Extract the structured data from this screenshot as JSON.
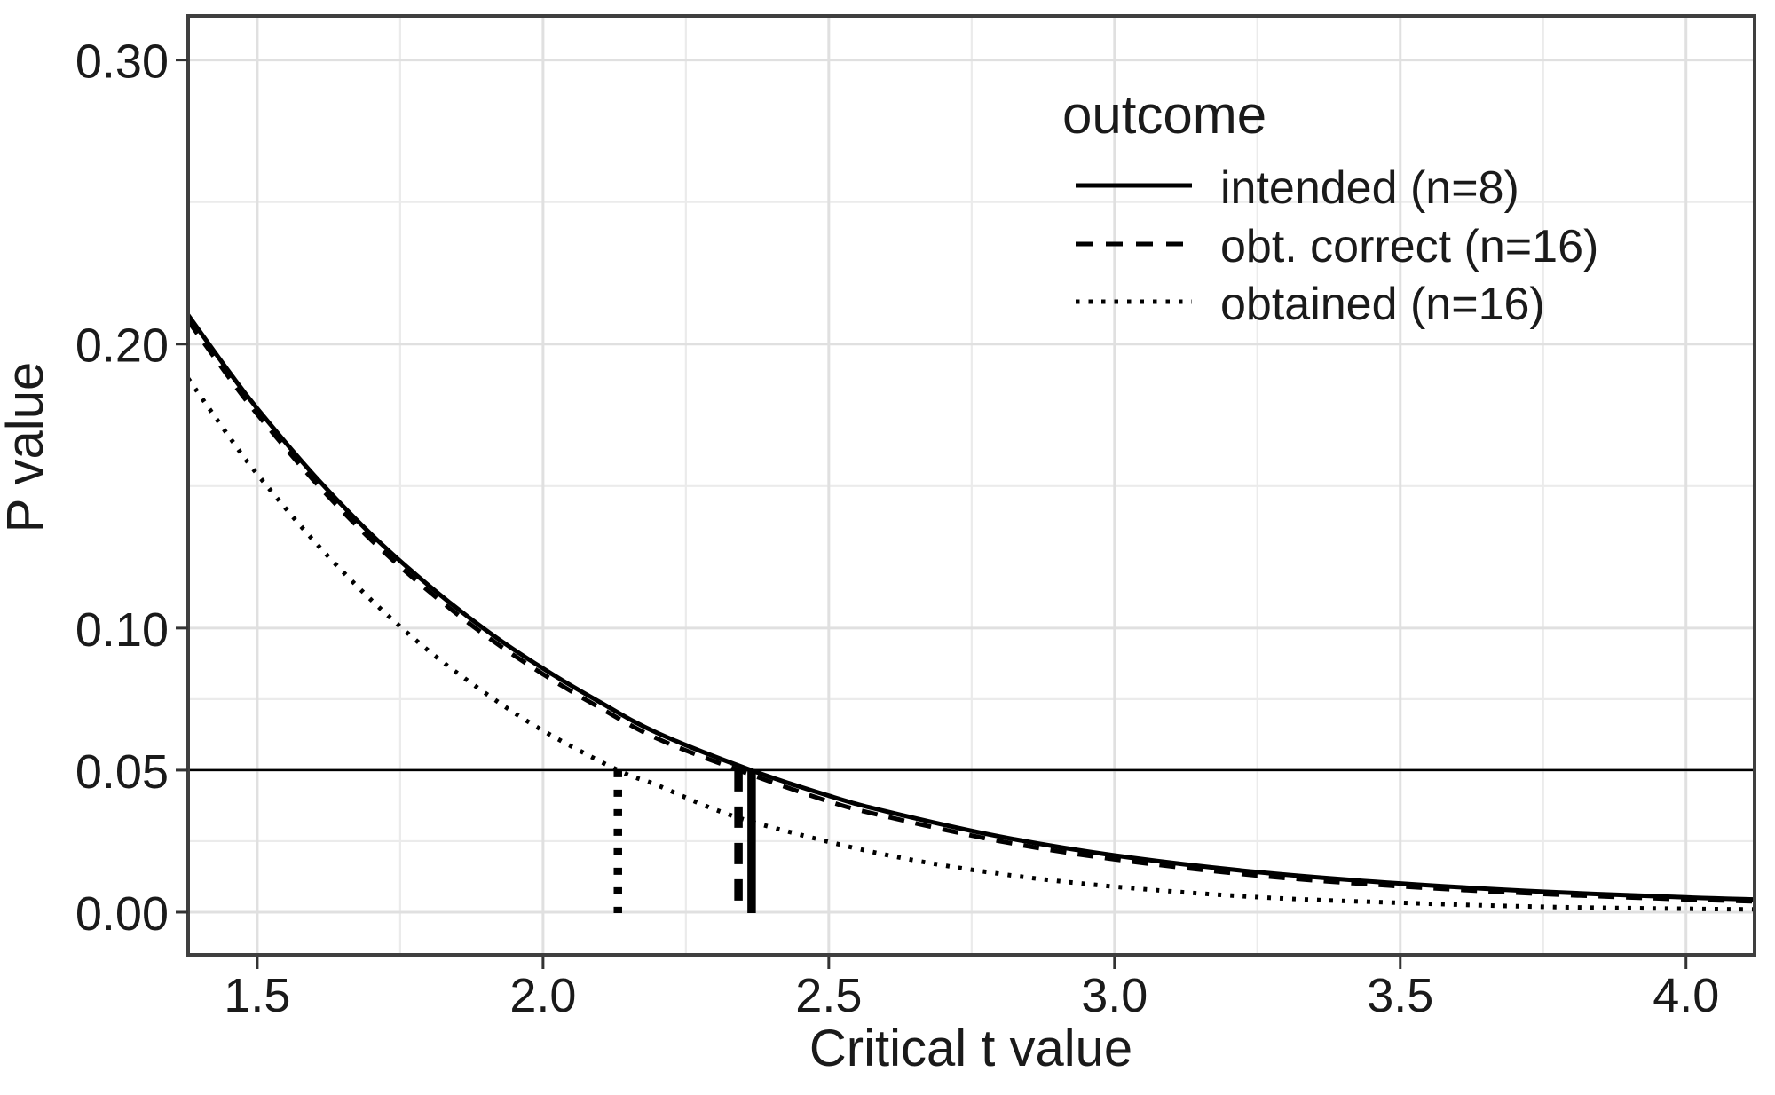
{
  "chart_data": {
    "type": "line",
    "title": "",
    "xlabel": "Critical t value",
    "ylabel": "P value",
    "legend_title": "outcome",
    "legend_position": "inside top-right",
    "grid": true,
    "xlim": [
      1.379,
      4.12
    ],
    "ylim": [
      -0.015,
      0.3155
    ],
    "x_ticks": [
      1.5,
      2.0,
      2.5,
      3.0,
      3.5,
      4.0
    ],
    "x_tick_labels": [
      "1.5",
      "2.0",
      "2.5",
      "3.0",
      "3.5",
      "4.0"
    ],
    "x_minor_breaks": [
      1.75,
      2.25,
      2.75,
      3.25,
      3.75
    ],
    "y_ticks": [
      0.0,
      0.05,
      0.1,
      0.2,
      0.3
    ],
    "y_tick_labels": [
      "0.00",
      "0.05",
      "0.10",
      "0.20",
      "0.30"
    ],
    "y_minor_breaks": [
      0.025,
      0.075,
      0.15,
      0.25
    ],
    "series": [
      {
        "name": "intended (n=8)",
        "linetype": "solid",
        "x": [
          1.379,
          1.45,
          1.5,
          1.6,
          1.7,
          1.8,
          1.9,
          2.0,
          2.1,
          2.2,
          2.365,
          2.5,
          2.6,
          2.8,
          3.0,
          3.25,
          3.5,
          3.75,
          4.0,
          4.12
        ],
        "y": [
          0.2102,
          0.1904,
          0.1773,
          0.1537,
          0.1329,
          0.115,
          0.0993,
          0.0858,
          0.0739,
          0.0631,
          0.0499,
          0.041,
          0.0355,
          0.0266,
          0.02,
          0.0141,
          0.0101,
          0.0072,
          0.0052,
          0.0045
        ]
      },
      {
        "name": "obt. correct (n=16)",
        "linetype": "dashed",
        "x": [
          1.379,
          1.45,
          1.5,
          1.6,
          1.7,
          1.8,
          1.9,
          2.0,
          2.1,
          2.2,
          2.342,
          2.5,
          2.6,
          2.8,
          3.0,
          3.25,
          3.5,
          3.75,
          4.0,
          4.12
        ],
        "y": [
          0.2082,
          0.1884,
          0.1753,
          0.1517,
          0.1309,
          0.113,
          0.0973,
          0.0838,
          0.0719,
          0.0611,
          0.05,
          0.039,
          0.0337,
          0.025,
          0.0186,
          0.0129,
          0.0091,
          0.0064,
          0.0045,
          0.0038
        ]
      },
      {
        "name": "obtained (n=16)",
        "linetype": "dotted",
        "x": [
          1.379,
          1.45,
          1.5,
          1.6,
          1.7,
          1.8,
          1.9,
          2.0,
          2.131,
          2.2,
          2.3,
          2.4,
          2.6,
          2.8,
          3.0,
          3.25,
          3.5,
          3.75,
          4.0,
          4.12
        ],
        "y": [
          0.1879,
          0.1676,
          0.1542,
          0.1305,
          0.1098,
          0.092,
          0.077,
          0.0639,
          0.05,
          0.0447,
          0.0362,
          0.0299,
          0.0202,
          0.0135,
          0.009,
          0.0053,
          0.0033,
          0.0019,
          0.0012,
          0.001
        ]
      }
    ],
    "reference_lines": {
      "hline": {
        "y": 0.05,
        "style": "solid"
      },
      "vlines": [
        {
          "x": 2.131,
          "from": 0,
          "to": 0.05,
          "style": "dotted",
          "series": "obtained (n=16)"
        },
        {
          "x": 2.342,
          "from": 0,
          "to": 0.05,
          "style": "dashed",
          "series": "obt. correct (n=16)"
        },
        {
          "x": 2.365,
          "from": 0,
          "to": 0.05,
          "style": "solid",
          "series": "intended (n=8)"
        }
      ]
    },
    "colors": {
      "curve": "#000000",
      "grid_major": "#e0e0e0",
      "grid_minor": "#ebebeb",
      "panel_border": "#3f3f3f",
      "tick_mark": "#333333",
      "text": "#1a1a1a",
      "background": "#ffffff"
    }
  }
}
